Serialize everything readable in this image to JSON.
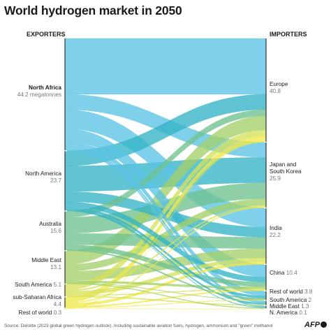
{
  "title": "World hydrogen market in 2050",
  "exporters_heading": "EXPORTERS",
  "importers_heading": "IMPORTERS",
  "exporters": [
    {
      "name": "North Africa",
      "value": 44.2,
      "value_label": "44.2 megatonnes",
      "color": "#5bc3e4"
    },
    {
      "name": "North America",
      "value": 23.7,
      "value_label": "23.7",
      "color": "#33b3c6"
    },
    {
      "name": "Australia",
      "value": 15.6,
      "value_label": "15.6",
      "color": "#6fc18f"
    },
    {
      "name": "Middle East",
      "value": 13.1,
      "value_label": "13.1",
      "color": "#a3cf6a"
    },
    {
      "name": "South America",
      "value": 5.1,
      "value_label": "5.1",
      "color": "#d6e15a"
    },
    {
      "name": "sub-Saharan Africa",
      "value": 4.4,
      "value_label": "4.4",
      "color": "#efe84a"
    },
    {
      "name": "Rest of world",
      "value": 0.3,
      "value_label": "0.3",
      "color": "#f4ea3a"
    }
  ],
  "importers": [
    {
      "name": "Europe",
      "value": 40.8,
      "value_label": "40.8"
    },
    {
      "name": "Japan and South Korea",
      "name_line1": "Japan and",
      "name_line2": "South Korea",
      "value": 25.9,
      "value_label": "25.9"
    },
    {
      "name": "India",
      "value": 22.2,
      "value_label": "22.2"
    },
    {
      "name": "China",
      "value": 10.4,
      "value_label": "10.4"
    },
    {
      "name": "Rest of world",
      "value": 3.8,
      "value_label": "3.8"
    },
    {
      "name": "South America",
      "value": 2,
      "value_label": "2"
    },
    {
      "name": "Middle East",
      "value": 1.3,
      "value_label": "1.3"
    },
    {
      "name": "N. America",
      "value": 0.1,
      "value_label": "0.1"
    }
  ],
  "flows": [
    {
      "from": 0,
      "to": 0,
      "value": 22.0
    },
    {
      "from": 0,
      "to": 1,
      "value": 6.0
    },
    {
      "from": 0,
      "to": 2,
      "value": 7.5
    },
    {
      "from": 0,
      "to": 3,
      "value": 5.0
    },
    {
      "from": 0,
      "to": 4,
      "value": 2.0
    },
    {
      "from": 0,
      "to": 5,
      "value": 1.0
    },
    {
      "from": 0,
      "to": 6,
      "value": 0.7
    },
    {
      "from": 1,
      "to": 0,
      "value": 6.0
    },
    {
      "from": 1,
      "to": 1,
      "value": 10.0
    },
    {
      "from": 1,
      "to": 2,
      "value": 4.0
    },
    {
      "from": 1,
      "to": 3,
      "value": 2.0
    },
    {
      "from": 1,
      "to": 4,
      "value": 0.9
    },
    {
      "from": 1,
      "to": 5,
      "value": 0.6
    },
    {
      "from": 1,
      "to": 6,
      "value": 0.2
    },
    {
      "from": 2,
      "to": 0,
      "value": 2.5
    },
    {
      "from": 2,
      "to": 1,
      "value": 6.3
    },
    {
      "from": 2,
      "to": 2,
      "value": 4.5
    },
    {
      "from": 2,
      "to": 3,
      "value": 1.8
    },
    {
      "from": 2,
      "to": 4,
      "value": 0.5
    },
    {
      "from": 3,
      "to": 0,
      "value": 5.5
    },
    {
      "from": 3,
      "to": 1,
      "value": 2.6
    },
    {
      "from": 3,
      "to": 2,
      "value": 3.7
    },
    {
      "from": 3,
      "to": 3,
      "value": 0.8
    },
    {
      "from": 3,
      "to": 4,
      "value": 0.2
    },
    {
      "from": 3,
      "to": 6,
      "value": 0.3
    },
    {
      "from": 4,
      "to": 0,
      "value": 2.4
    },
    {
      "from": 4,
      "to": 1,
      "value": 0.5
    },
    {
      "from": 4,
      "to": 2,
      "value": 1.5
    },
    {
      "from": 4,
      "to": 3,
      "value": 0.3
    },
    {
      "from": 4,
      "to": 5,
      "value": 0.4
    },
    {
      "from": 5,
      "to": 0,
      "value": 2.2
    },
    {
      "from": 5,
      "to": 1,
      "value": 0.4
    },
    {
      "from": 5,
      "to": 2,
      "value": 1.0
    },
    {
      "from": 5,
      "to": 3,
      "value": 0.5
    },
    {
      "from": 5,
      "to": 4,
      "value": 0.2
    },
    {
      "from": 6,
      "to": 0,
      "value": 0.2
    },
    {
      "from": 6,
      "to": 7,
      "value": 0.1
    }
  ],
  "source": "Source: Deloitte (2023 global green hydrogen outlook). Including sustainable aviation fuels, hydrogen, ammonium and \"green\" methanol",
  "logo_text": "AFP"
}
